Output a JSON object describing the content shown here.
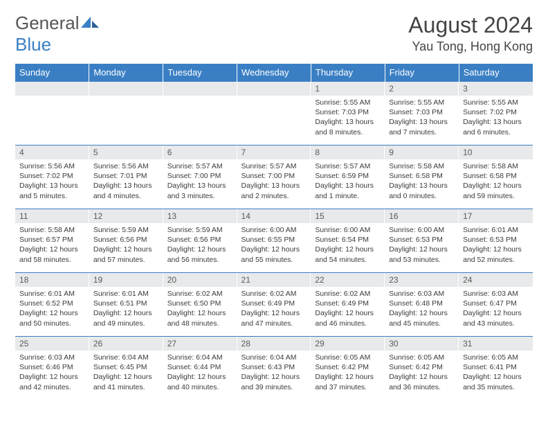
{
  "brand": {
    "part1": "General",
    "part2": "Blue"
  },
  "title": "August 2024",
  "location": "Yau Tong, Hong Kong",
  "colors": {
    "header_bg": "#3a7fc4",
    "header_fg": "#ffffff",
    "daynum_bg": "#e7e9ea",
    "cell_border": "#3a7fc4",
    "text": "#3a3a3a"
  },
  "weekdays": [
    "Sunday",
    "Monday",
    "Tuesday",
    "Wednesday",
    "Thursday",
    "Friday",
    "Saturday"
  ],
  "weeks": [
    [
      {
        "n": "",
        "sr": "",
        "ss": "",
        "dl": ""
      },
      {
        "n": "",
        "sr": "",
        "ss": "",
        "dl": ""
      },
      {
        "n": "",
        "sr": "",
        "ss": "",
        "dl": ""
      },
      {
        "n": "",
        "sr": "",
        "ss": "",
        "dl": ""
      },
      {
        "n": "1",
        "sr": "5:55 AM",
        "ss": "7:03 PM",
        "dl": "13 hours and 8 minutes."
      },
      {
        "n": "2",
        "sr": "5:55 AM",
        "ss": "7:03 PM",
        "dl": "13 hours and 7 minutes."
      },
      {
        "n": "3",
        "sr": "5:55 AM",
        "ss": "7:02 PM",
        "dl": "13 hours and 6 minutes."
      }
    ],
    [
      {
        "n": "4",
        "sr": "5:56 AM",
        "ss": "7:02 PM",
        "dl": "13 hours and 5 minutes."
      },
      {
        "n": "5",
        "sr": "5:56 AM",
        "ss": "7:01 PM",
        "dl": "13 hours and 4 minutes."
      },
      {
        "n": "6",
        "sr": "5:57 AM",
        "ss": "7:00 PM",
        "dl": "13 hours and 3 minutes."
      },
      {
        "n": "7",
        "sr": "5:57 AM",
        "ss": "7:00 PM",
        "dl": "13 hours and 2 minutes."
      },
      {
        "n": "8",
        "sr": "5:57 AM",
        "ss": "6:59 PM",
        "dl": "13 hours and 1 minute."
      },
      {
        "n": "9",
        "sr": "5:58 AM",
        "ss": "6:58 PM",
        "dl": "13 hours and 0 minutes."
      },
      {
        "n": "10",
        "sr": "5:58 AM",
        "ss": "6:58 PM",
        "dl": "12 hours and 59 minutes."
      }
    ],
    [
      {
        "n": "11",
        "sr": "5:58 AM",
        "ss": "6:57 PM",
        "dl": "12 hours and 58 minutes."
      },
      {
        "n": "12",
        "sr": "5:59 AM",
        "ss": "6:56 PM",
        "dl": "12 hours and 57 minutes."
      },
      {
        "n": "13",
        "sr": "5:59 AM",
        "ss": "6:56 PM",
        "dl": "12 hours and 56 minutes."
      },
      {
        "n": "14",
        "sr": "6:00 AM",
        "ss": "6:55 PM",
        "dl": "12 hours and 55 minutes."
      },
      {
        "n": "15",
        "sr": "6:00 AM",
        "ss": "6:54 PM",
        "dl": "12 hours and 54 minutes."
      },
      {
        "n": "16",
        "sr": "6:00 AM",
        "ss": "6:53 PM",
        "dl": "12 hours and 53 minutes."
      },
      {
        "n": "17",
        "sr": "6:01 AM",
        "ss": "6:53 PM",
        "dl": "12 hours and 52 minutes."
      }
    ],
    [
      {
        "n": "18",
        "sr": "6:01 AM",
        "ss": "6:52 PM",
        "dl": "12 hours and 50 minutes."
      },
      {
        "n": "19",
        "sr": "6:01 AM",
        "ss": "6:51 PM",
        "dl": "12 hours and 49 minutes."
      },
      {
        "n": "20",
        "sr": "6:02 AM",
        "ss": "6:50 PM",
        "dl": "12 hours and 48 minutes."
      },
      {
        "n": "21",
        "sr": "6:02 AM",
        "ss": "6:49 PM",
        "dl": "12 hours and 47 minutes."
      },
      {
        "n": "22",
        "sr": "6:02 AM",
        "ss": "6:49 PM",
        "dl": "12 hours and 46 minutes."
      },
      {
        "n": "23",
        "sr": "6:03 AM",
        "ss": "6:48 PM",
        "dl": "12 hours and 45 minutes."
      },
      {
        "n": "24",
        "sr": "6:03 AM",
        "ss": "6:47 PM",
        "dl": "12 hours and 43 minutes."
      }
    ],
    [
      {
        "n": "25",
        "sr": "6:03 AM",
        "ss": "6:46 PM",
        "dl": "12 hours and 42 minutes."
      },
      {
        "n": "26",
        "sr": "6:04 AM",
        "ss": "6:45 PM",
        "dl": "12 hours and 41 minutes."
      },
      {
        "n": "27",
        "sr": "6:04 AM",
        "ss": "6:44 PM",
        "dl": "12 hours and 40 minutes."
      },
      {
        "n": "28",
        "sr": "6:04 AM",
        "ss": "6:43 PM",
        "dl": "12 hours and 39 minutes."
      },
      {
        "n": "29",
        "sr": "6:05 AM",
        "ss": "6:42 PM",
        "dl": "12 hours and 37 minutes."
      },
      {
        "n": "30",
        "sr": "6:05 AM",
        "ss": "6:42 PM",
        "dl": "12 hours and 36 minutes."
      },
      {
        "n": "31",
        "sr": "6:05 AM",
        "ss": "6:41 PM",
        "dl": "12 hours and 35 minutes."
      }
    ]
  ],
  "labels": {
    "sunrise": "Sunrise:",
    "sunset": "Sunset:",
    "daylight": "Daylight:"
  }
}
